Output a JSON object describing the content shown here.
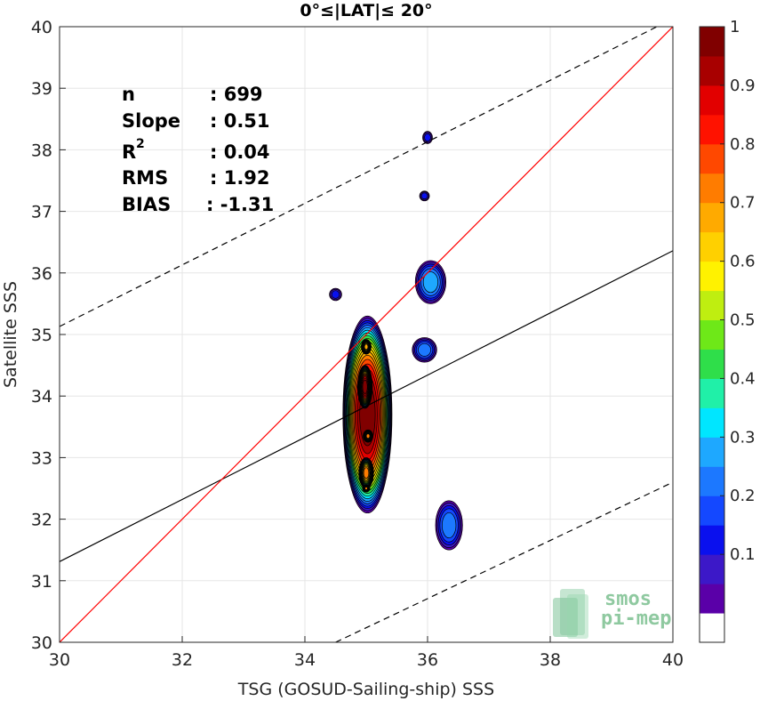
{
  "chart_data": {
    "type": "contour_density",
    "title": "0°≤|LAT|≤ 20°",
    "xlabel": "TSG (GOSUD-Sailing-ship) SSS",
    "ylabel": "Satellite SSS",
    "xlim": [
      30,
      40
    ],
    "ylim": [
      30,
      40
    ],
    "xticks": [
      "30",
      "32",
      "34",
      "36",
      "38",
      "40"
    ],
    "yticks": [
      "30",
      "31",
      "32",
      "33",
      "34",
      "35",
      "36",
      "37",
      "38",
      "39",
      "40"
    ],
    "grid": true,
    "stats": [
      {
        "label": "n",
        "value": ": 699"
      },
      {
        "label": "Slope",
        "value": ": 0.51"
      },
      {
        "label": "R",
        "sup": "2",
        "value": ": 0.04"
      },
      {
        "label": "RMS",
        "value": ": 1.92"
      },
      {
        "label": "BIAS",
        "value": ": -1.31"
      }
    ],
    "lines": {
      "identity": {
        "x": [
          30,
          40
        ],
        "y": [
          30,
          40
        ],
        "color": "#ff0000"
      },
      "regression": {
        "x": [
          30,
          40
        ],
        "y": [
          31.31,
          36.36
        ],
        "color": "#000000"
      },
      "upper_bound": {
        "x": [
          30,
          40
        ],
        "y": [
          35.13,
          40.13
        ],
        "style": "dashed",
        "color": "#000000"
      },
      "lower_bound": {
        "x": [
          34.5,
          40
        ],
        "y": [
          30.0,
          32.6
        ],
        "style": "dashed",
        "color": "#000000"
      }
    },
    "density_blobs": [
      {
        "cx": 35.02,
        "cy": 33.7,
        "rx": 0.4,
        "ry": 1.6,
        "peak": 1.0
      },
      {
        "cx": 34.98,
        "cy": 34.15,
        "rx": 0.12,
        "ry": 0.35,
        "peak": 1.0
      },
      {
        "cx": 35.0,
        "cy": 34.8,
        "rx": 0.08,
        "ry": 0.12,
        "peak": 0.7
      },
      {
        "cx": 35.03,
        "cy": 33.35,
        "rx": 0.08,
        "ry": 0.1,
        "peak": 0.75
      },
      {
        "cx": 35.0,
        "cy": 32.75,
        "rx": 0.12,
        "ry": 0.25,
        "peak": 0.75
      },
      {
        "cx": 35.0,
        "cy": 32.5,
        "rx": 0.06,
        "ry": 0.06,
        "peak": 0.75
      },
      {
        "cx": 36.05,
        "cy": 35.85,
        "rx": 0.25,
        "ry": 0.35,
        "peak": 0.3
      },
      {
        "cx": 35.95,
        "cy": 34.75,
        "rx": 0.2,
        "ry": 0.2,
        "peak": 0.25
      },
      {
        "cx": 36.35,
        "cy": 31.9,
        "rx": 0.22,
        "ry": 0.4,
        "peak": 0.25
      },
      {
        "cx": 36.0,
        "cy": 38.2,
        "rx": 0.08,
        "ry": 0.1,
        "peak": 0.15
      },
      {
        "cx": 35.95,
        "cy": 37.25,
        "rx": 0.08,
        "ry": 0.08,
        "peak": 0.15
      },
      {
        "cx": 34.5,
        "cy": 35.65,
        "rx": 0.1,
        "ry": 0.1,
        "peak": 0.15
      }
    ],
    "colorbar": {
      "ticks": [
        "0.1",
        "0.2",
        "0.3",
        "0.4",
        "0.5",
        "0.6",
        "0.7",
        "0.8",
        "0.9",
        "1"
      ],
      "colors": [
        "#ffffff",
        "#5a00a8",
        "#3c18c8",
        "#0a10ee",
        "#1448ff",
        "#1c78ff",
        "#1ea8ff",
        "#00e6ff",
        "#20f0a8",
        "#2fde4a",
        "#6ee818",
        "#bfee10",
        "#fff200",
        "#ffd000",
        "#ffaa00",
        "#ff7c00",
        "#ff4800",
        "#ff1200",
        "#e20000",
        "#a80000",
        "#800000"
      ]
    }
  },
  "logo": {
    "line1": "smos",
    "line2": "pi-mep"
  }
}
